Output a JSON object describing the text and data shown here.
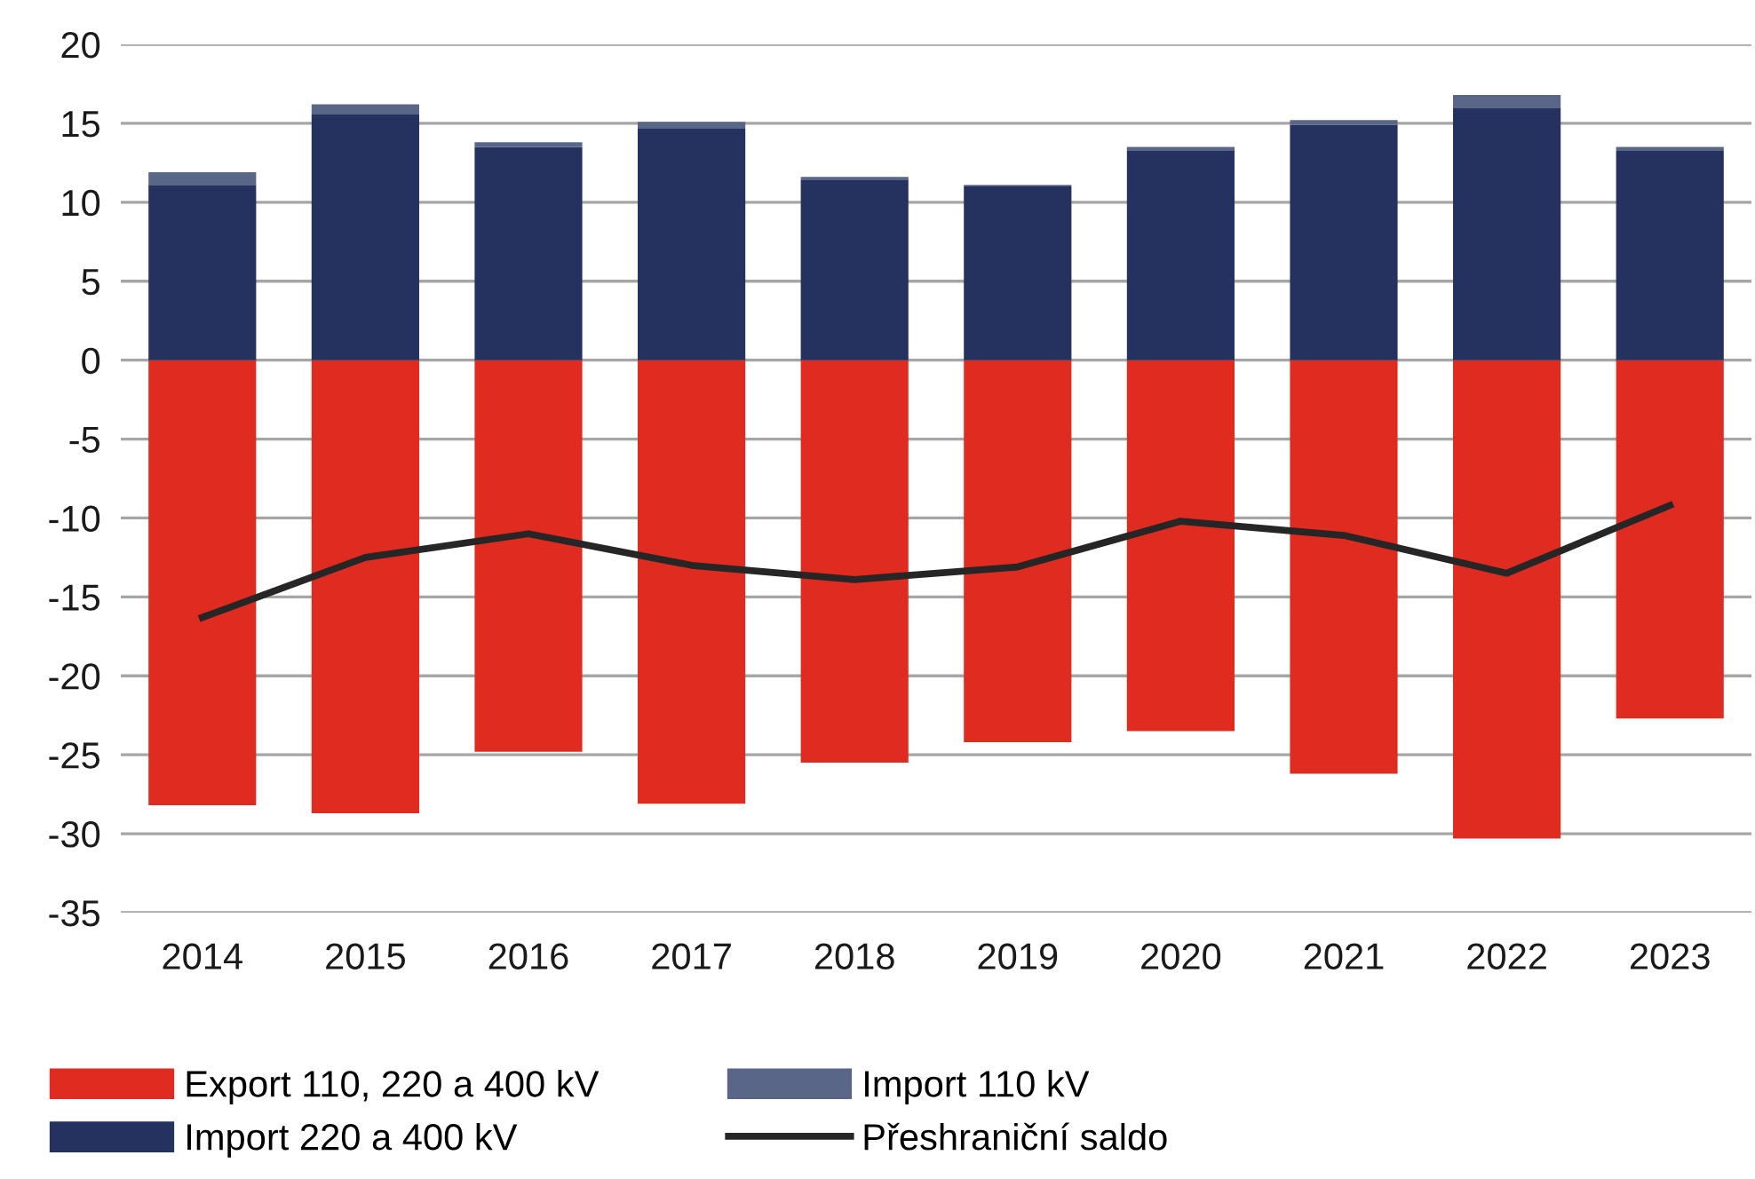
{
  "chart_data": {
    "type": "bar",
    "stacked": true,
    "categories": [
      "2014",
      "2015",
      "2016",
      "2017",
      "2018",
      "2019",
      "2020",
      "2021",
      "2022",
      "2023"
    ],
    "series": [
      {
        "name": "Export 110, 220 a 400 kV",
        "color": "#e02b20",
        "values": [
          -28.2,
          -28.7,
          -24.8,
          -28.1,
          -25.5,
          -24.2,
          -23.5,
          -26.2,
          -30.3,
          -22.7
        ]
      },
      {
        "name": "Import 220 a 400 kV",
        "color": "#25315f",
        "values": [
          11.1,
          15.6,
          13.5,
          14.7,
          11.4,
          11.0,
          13.3,
          14.9,
          16.0,
          13.3
        ]
      },
      {
        "name": "Import 110 kV",
        "color": "#5a6688",
        "values": [
          0.8,
          0.6,
          0.3,
          0.4,
          0.2,
          0.1,
          0.2,
          0.3,
          0.8,
          0.2
        ]
      },
      {
        "name": "Přeshraniční saldo",
        "type": "line",
        "color": "#262626",
        "values": [
          -16.3,
          -12.5,
          -11.0,
          -13.0,
          -13.9,
          -13.1,
          -10.2,
          -11.1,
          -13.5,
          -9.2
        ]
      }
    ],
    "ylim": [
      -35,
      20
    ],
    "yticks": [
      -35,
      -30,
      -25,
      -20,
      -15,
      -10,
      -5,
      0,
      5,
      10,
      15,
      20
    ],
    "grid": "y",
    "legend": "bottom",
    "marker": "none",
    "line_style": "solid"
  }
}
